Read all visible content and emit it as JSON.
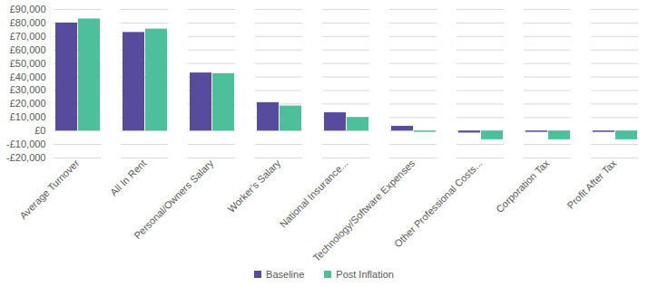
{
  "chart_data": {
    "type": "bar",
    "categories": [
      "Average Turnover",
      "All In Rent",
      "Personal/Owners Salary",
      "Worker's Salary",
      "National Insurance...",
      "Technology/Software Expenses",
      "Other Professional Costs...",
      "Corporation Tax",
      "Profit After Tax"
    ],
    "series": [
      {
        "name": "Baseline",
        "color": "#574b9e",
        "values": [
          80000,
          73000,
          43000,
          21000,
          13500,
          3500,
          -1500,
          -1000,
          -1000
        ]
      },
      {
        "name": "Post Inflation",
        "color": "#4dbf9b",
        "values": [
          83000,
          75500,
          42500,
          18500,
          10000,
          -1000,
          -6500,
          -6500,
          -6500
        ]
      }
    ],
    "ylim": [
      -20000,
      90000
    ],
    "yticks": [
      {
        "value": -20000,
        "label": "-£20,000"
      },
      {
        "value": -10000,
        "label": "-£10,000"
      },
      {
        "value": 0,
        "label": "£0"
      },
      {
        "value": 10000,
        "label": "£10,000"
      },
      {
        "value": 20000,
        "label": "£20,000"
      },
      {
        "value": 30000,
        "label": "£30,000"
      },
      {
        "value": 40000,
        "label": "£40,000"
      },
      {
        "value": 50000,
        "label": "£50,000"
      },
      {
        "value": 60000,
        "label": "£60,000"
      },
      {
        "value": 70000,
        "label": "£70,000"
      },
      {
        "value": 80000,
        "label": "£80,000"
      },
      {
        "value": 90000,
        "label": "£90,000"
      }
    ],
    "grid": true,
    "legend": "bottom"
  }
}
